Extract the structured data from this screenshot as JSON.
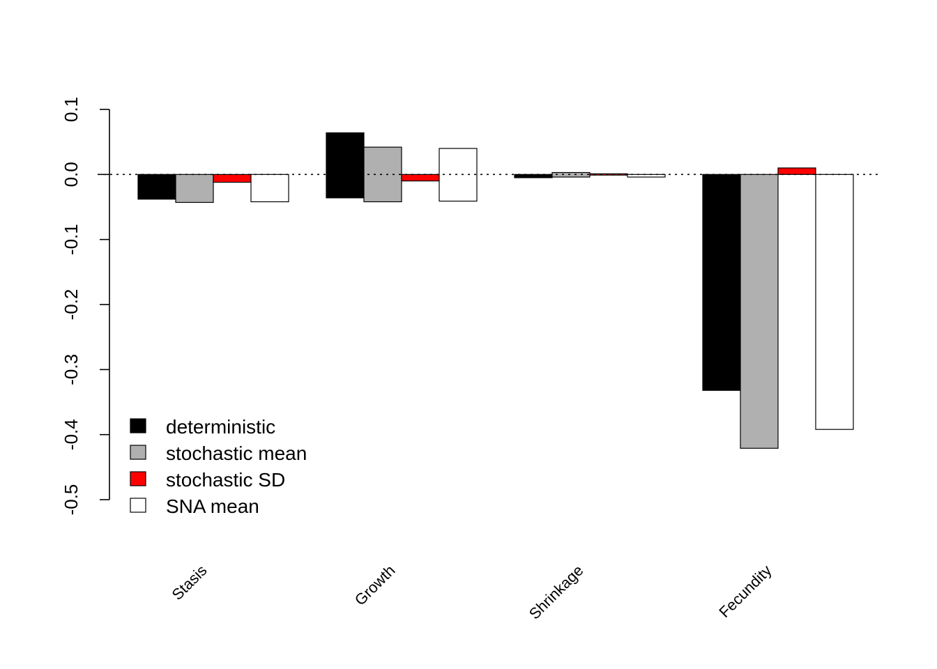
{
  "chart_data": {
    "type": "bar",
    "title": "",
    "xlabel": "",
    "ylabel": "",
    "ylim": [
      -0.5,
      0.1
    ],
    "yticks": [
      0.1,
      0.0,
      -0.1,
      -0.2,
      -0.3,
      -0.4,
      -0.5
    ],
    "ytick_labels": [
      "0.1",
      "0.0",
      "-0.1",
      "-0.2",
      "-0.3",
      "-0.4",
      "-0.5"
    ],
    "categories": [
      "Stasis",
      "Growth",
      "Shrinkage",
      "Fecundity"
    ],
    "reference_line": 0,
    "legend_position": "bottom-left",
    "series": [
      {
        "name": "deterministic",
        "color": "#000000",
        "values": [
          [
            -0.038,
            0
          ],
          [
            -0.036,
            0.064
          ],
          [
            -0.005,
            0
          ],
          [
            -0.332,
            0
          ]
        ]
      },
      {
        "name": "stochastic mean",
        "color": "#b0b0b0",
        "values": [
          [
            -0.043,
            0
          ],
          [
            -0.042,
            0.042
          ],
          [
            -0.004,
            0.003
          ],
          [
            -0.421,
            0
          ]
        ]
      },
      {
        "name": "stochastic SD",
        "color": "#ff0000",
        "values": [
          [
            -0.012,
            0
          ],
          [
            -0.01,
            0
          ],
          [
            -0.001,
            0.001
          ],
          [
            0,
            0.01
          ]
        ]
      },
      {
        "name": "SNA mean",
        "color": "#ffffff",
        "values": [
          [
            -0.042,
            0
          ],
          [
            -0.041,
            0.04
          ],
          [
            -0.004,
            0
          ],
          [
            -0.392,
            0
          ]
        ]
      }
    ]
  }
}
